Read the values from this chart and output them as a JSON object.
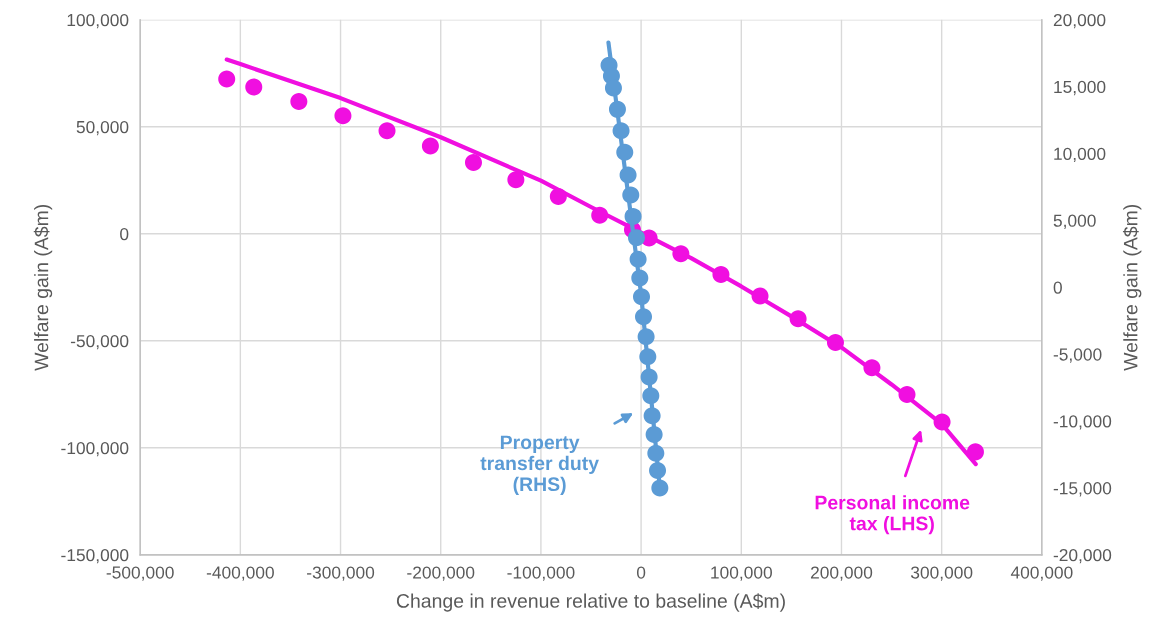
{
  "chart_data": {
    "type": "scatter",
    "xlabel": "Change in revenue relative to baseline (A$m)",
    "ylabel": "Welfare gain (A$m)",
    "y2label": "Welfare gain (A$m)",
    "xlim": [
      -500000,
      400000
    ],
    "xticks": [
      {
        "value": -500000,
        "label": "-500,000"
      },
      {
        "value": -400000,
        "label": "-400,000"
      },
      {
        "value": -300000,
        "label": "-300,000"
      },
      {
        "value": -200000,
        "label": "-200,000"
      },
      {
        "value": -100000,
        "label": "-100,000"
      },
      0,
      {
        "value": 100000,
        "label": "100,000"
      },
      {
        "value": 200000,
        "label": "200,000"
      },
      {
        "value": 300000,
        "label": "300,000"
      },
      {
        "value": 400000,
        "label": "400,000"
      }
    ],
    "ylim": [
      -150000,
      100000
    ],
    "yticks": [
      {
        "value": -150000,
        "label": "-150,000"
      },
      {
        "value": -100000,
        "label": "-100,000"
      },
      {
        "value": -50000,
        "label": "-50,000"
      },
      0,
      {
        "value": 50000,
        "label": "50,000"
      },
      {
        "value": 100000,
        "label": "100,000"
      }
    ],
    "y2lim": [
      -20000,
      20000
    ],
    "y2ticks": [
      {
        "value": -20000,
        "label": "-20,000"
      },
      {
        "value": -15000,
        "label": "-15,000"
      },
      {
        "value": -10000,
        "label": "-10,000"
      },
      {
        "value": -5000,
        "label": "-5,000"
      },
      0,
      {
        "value": 5000,
        "label": "5,000"
      },
      {
        "value": 10000,
        "label": "10,000"
      },
      {
        "value": 15000,
        "label": "15,000"
      },
      {
        "value": 20000,
        "label": "20,000"
      }
    ],
    "grid": true,
    "legend": false,
    "marker": "circle",
    "series": [
      {
        "axis": "y2",
        "color": "#5b9bd5",
        "x": [
          -32000,
          -29600,
          -27600,
          -23600,
          -20000,
          -16300,
          -13000,
          -10300,
          -8000,
          -4600,
          -3000,
          -1300,
          400,
          2400,
          5000,
          6700,
          8000,
          9700,
          11000,
          13000,
          14700,
          16400,
          18700
        ],
        "values": [
          16600,
          15800,
          14900,
          13300,
          11700,
          10100,
          8400,
          6900,
          5300,
          3700,
          2100,
          700,
          -700,
          -2200,
          -3700,
          -5200,
          -6700,
          -8100,
          -9600,
          -11000,
          -12400,
          -13700,
          -15000
        ]
      },
      {
        "type": "line",
        "marker": "none",
        "axis": "y2",
        "color": "#5b9bd5",
        "x": [
          -32600,
          0,
          18700
        ],
        "values": [
          18300,
          -500,
          -15000
        ]
      },
      {
        "color": "#f00fe0",
        "x": [
          -413600,
          -386600,
          -341600,
          -297600,
          -253600,
          -210300,
          -167300,
          -125000,
          -82600,
          -41300,
          -8600,
          8000,
          39700,
          79700,
          118700,
          156700,
          194000,
          230400,
          265400,
          300400,
          333700
        ],
        "values": [
          72300,
          68600,
          61800,
          55100,
          48100,
          41000,
          33300,
          25200,
          17400,
          8700,
          1900,
          -2000,
          -9300,
          -19000,
          -29100,
          -39700,
          -50800,
          -62600,
          -75100,
          -87900,
          -101900
        ]
      },
      {
        "type": "line",
        "marker": "none",
        "color": "#f00fe0",
        "x": [
          -413600,
          -400000,
          -300000,
          -200000,
          -100000,
          -50000,
          0,
          50000,
          100000,
          150000,
          200000,
          250000,
          300000,
          334000
        ],
        "values": [
          81400,
          79300,
          63400,
          45100,
          24800,
          12500,
          500,
          -11400,
          -24600,
          -38600,
          -53100,
          -70400,
          -88800,
          -107600
        ]
      }
    ],
    "annotations": [
      "Property\ntransfer duty\n(RHS)",
      "Personal income\ntax (LHS)"
    ]
  }
}
